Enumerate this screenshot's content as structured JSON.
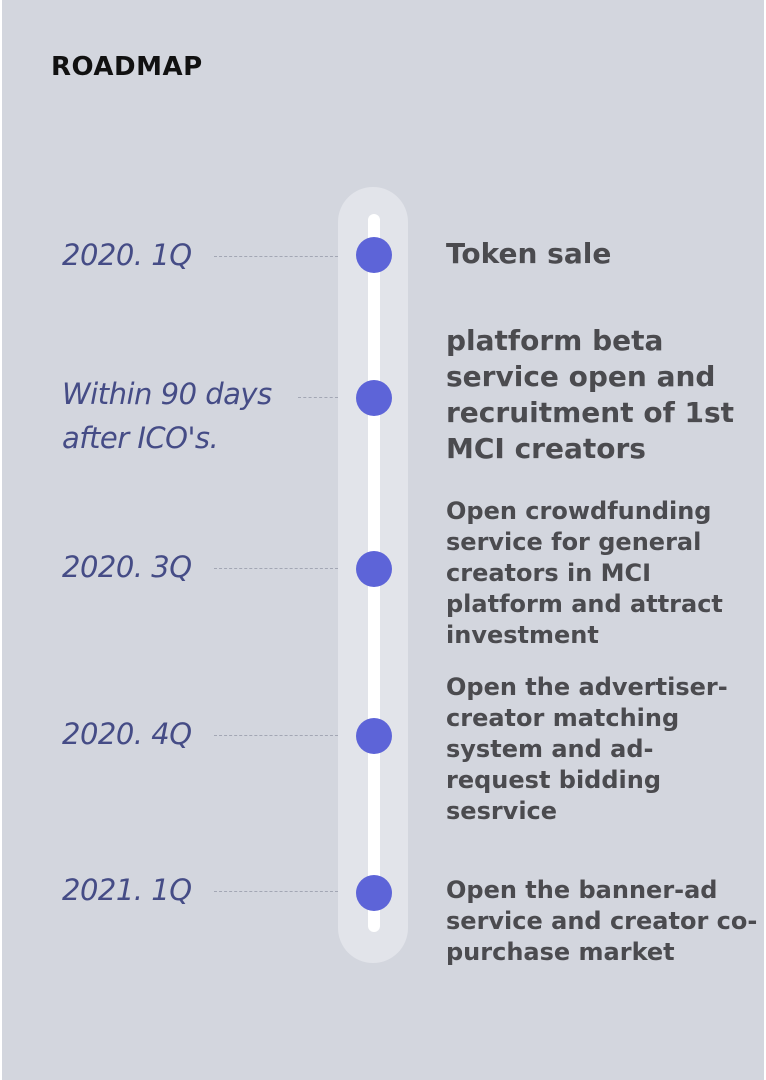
{
  "roadmap": {
    "title": "ROADMAP",
    "milestones": [
      {
        "date": "2020. 1Q",
        "description": "Token sale"
      },
      {
        "date_lines": [
          "Within 90 days",
          "after ICO's."
        ],
        "description_lines": [
          "platform beta",
          "service open and",
          "recruitment of 1st",
          "MCI creators"
        ]
      },
      {
        "date": "2020. 3Q",
        "description_lines": [
          "Open crowdfunding",
          "service for general",
          "creators in MCI",
          "platform and attract",
          "investment"
        ]
      },
      {
        "date": "2020. 4Q",
        "description_lines": [
          "Open the advertiser-",
          "creator matching",
          "system and ad-",
          "request bidding",
          "sesrvice"
        ]
      },
      {
        "date": "2021. 1Q",
        "description_lines": [
          "Open the banner-ad",
          "service and creator co-",
          "purchase market"
        ]
      }
    ]
  },
  "colors": {
    "background": "#d3d6de",
    "track": "#e2e4ea",
    "dot": "#5d64d8",
    "date_text": "#454c86",
    "description_text": "#4b4b4f"
  }
}
